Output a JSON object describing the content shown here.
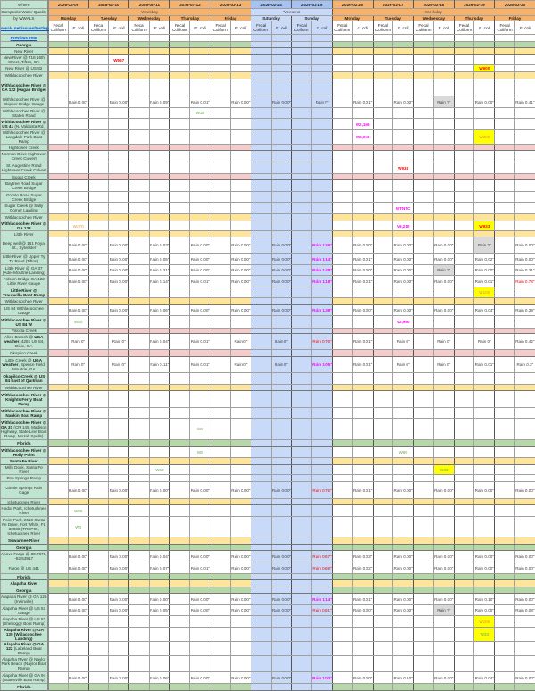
{
  "header": {
    "where": "Where",
    "subtitle": "Composite Water Quality",
    "by": "by WWALS",
    "link": "wwals.net/issues/testing/",
    "weekday_label": "Weekday",
    "weekend_label": "Weekend",
    "fields": [
      "Fecal Coliform",
      "E. coli"
    ],
    "days": [
      {
        "date": "2026-02-09",
        "name": "Monday",
        "weekend": false
      },
      {
        "date": "2026-02-10",
        "name": "Tuesday",
        "weekend": false
      },
      {
        "date": "2026-02-11",
        "name": "Wednesday",
        "weekend": false
      },
      {
        "date": "2026-02-12",
        "name": "Thursday",
        "weekend": false
      },
      {
        "date": "2026-02-13",
        "name": "Friday",
        "weekend": false
      },
      {
        "date": "2026-02-14",
        "name": "Saturday",
        "weekend": true
      },
      {
        "date": "2026-02-15",
        "name": "Sunday",
        "weekend": true
      },
      {
        "date": "2026-02-16",
        "name": "Monday",
        "weekend": false
      },
      {
        "date": "2026-02-17",
        "name": "Tuesday",
        "weekend": false
      },
      {
        "date": "2026-02-18",
        "name": "Wednesday",
        "weekend": false
      },
      {
        "date": "2026-02-19",
        "name": "Thursday",
        "weekend": false
      },
      {
        "date": "2026-02-20",
        "name": "Friday",
        "weekend": false
      }
    ]
  },
  "colors": {
    "header_orange": "#f6b26b",
    "weekend_blue": "#c9daf8",
    "state_green": "#b6d7a8",
    "river_yellow": "#ffe599",
    "creek_pink": "#f4cccc",
    "label_mint": "#bfe4d0",
    "highlight_yellow": "#ffff00",
    "rain_red": "#ff0000",
    "rain_magenta": "#ff00ff"
  },
  "rows": [
    {
      "type": "link",
      "label": "Previous Year"
    },
    {
      "type": "green",
      "bold": "Georgia"
    },
    {
      "type": "yellow",
      "label": "New River"
    },
    {
      "type": "site",
      "label": "New River @ 716 16th Street, Tifton, GA",
      "samples": [
        {
          "date": "2026-02-10",
          "field": "E. coli",
          "value": "W567",
          "tone": "red"
        }
      ]
    },
    {
      "type": "site",
      "label": "New River @ US 82",
      "samples": [
        {
          "date": "2026-02-19",
          "field": "E. coli",
          "value": "W600",
          "tone": "red",
          "highlight": true
        }
      ]
    },
    {
      "type": "yellow",
      "label": "Withlacoochee River"
    },
    {
      "type": "site",
      "bold": "Withlacoochee River @ GA 122 (Hagan Bridge)"
    },
    {
      "type": "site",
      "label": "Withlacoochee River @ Skipper Bridge Gauge",
      "rain": [
        "Rain 0.00\"",
        "Rain 0.00\"",
        "Rain 0.09\"",
        "Rain 0.01\"",
        "Rain 0.00\"",
        "Rain 0.00\"",
        "Rain ?\"",
        "Rain 0.01\"",
        "Rain 0.00\"",
        "Rain ?\"",
        "Rain 0.00\"",
        "Rain 0.41\""
      ]
    },
    {
      "type": "site",
      "label": "Withlacoochee River @ Staten Road",
      "samples": [
        {
          "date": "2026-02-12",
          "field": "E. coli",
          "value": "W33",
          "tone": "green"
        }
      ]
    },
    {
      "type": "site",
      "bold": "Withlacoochee River @ US 41",
      "label": " (N. Valdosta Rd.)",
      "samples": [
        {
          "date": "2026-02-16",
          "field": "E. coli",
          "value": "W2,166",
          "tone": "magenta"
        }
      ]
    },
    {
      "type": "site",
      "label": "Withlacoochee River @ Langdale Park Boat Ramp",
      "samples": [
        {
          "date": "2026-02-16",
          "field": "E. coli",
          "value": "W2,066",
          "tone": "magenta"
        },
        {
          "date": "2026-02-19",
          "field": "E. coli",
          "value": "W200",
          "tone": "orange",
          "highlight": true
        }
      ]
    },
    {
      "type": "pink",
      "label": "Hightower Creek"
    },
    {
      "type": "site",
      "label": "Norman Drive Hightower Creek Culvert"
    },
    {
      "type": "site",
      "label": "St. Augustine Road Hightower Creek Culvert",
      "samples": [
        {
          "date": "2026-02-17",
          "field": "E. coli",
          "value": "W933",
          "tone": "red"
        }
      ]
    },
    {
      "type": "pink",
      "label": "Sugar Creek"
    },
    {
      "type": "site",
      "label": "Baytree Road Sugar Creek Bridge"
    },
    {
      "type": "site",
      "label": "Gornto Road Sugar Creek Bridge"
    },
    {
      "type": "site",
      "label": "Sugar Creek @ Sally Corner Landing",
      "samples": [
        {
          "date": "2026-02-17",
          "field": "E. coli",
          "value": "WTNTC",
          "tone": "magenta"
        }
      ]
    },
    {
      "type": "yellow",
      "label": "Withlacoochee River"
    },
    {
      "type": "site",
      "bold": "Withlacoochee River @ GA 133",
      "samples": [
        {
          "date": "2026-02-09",
          "field": "E. coli",
          "value": "W370",
          "tone": "orange"
        },
        {
          "date": "2026-02-17",
          "field": "E. coli",
          "value": "V9,210",
          "tone": "magenta"
        },
        {
          "date": "2026-02-19",
          "field": "E. coli",
          "value": "W933",
          "tone": "red",
          "highlight": true
        }
      ]
    },
    {
      "type": "yellow",
      "label": "Little River"
    },
    {
      "type": "site",
      "label": "Deep well @ 161 Royal St., Sylvester",
      "rain": [
        "Rain 0.00\"",
        "Rain 0.00\"",
        "Rain 0.03\"",
        "Rain 0.00\"",
        "Rain 0.00\"",
        "Rain 0.00\"",
        "Rain 1.26\"",
        "Rain 0.00\"",
        "Rain 0.00\"",
        "Rain 0.00\"",
        "Rain ?\"",
        "Rain 0.00\""
      ]
    },
    {
      "type": "site",
      "label": "Little River @ Upper Ty Ty Road (Tifton)",
      "rain": [
        "Rain 0.00\"",
        "Rain 0.00\"",
        "Rain 0.05\"",
        "Rain 0.00\"",
        "Rain 0.00\"",
        "Rain 0.00\"",
        "Rain 1.14\"",
        "Rain 0.01\"",
        "Rain 0.00\"",
        "Rain 0.00\"",
        "Rain 0.02\"",
        "Rain 0.00\""
      ]
    },
    {
      "type": "site",
      "label": "Little River @ GA 37 (Adel-Moultrie Landing)",
      "rain": [
        "Rain 0.00\"",
        "Rain 0.00\"",
        "Rain 0.21\"",
        "Rain 0.00\"",
        "Rain 0.00\"",
        "Rain 0.00\"",
        "Rain 1.48\"",
        "Rain 0.00\"",
        "Rain 0.00\"",
        "Rain ?\"",
        "Rain 0.00\"",
        "Rain 0.31\""
      ]
    },
    {
      "type": "site",
      "label": "Folsom Bridge GA 122 Little River Gauge",
      "rain": [
        "Rain 0.00\"",
        "Rain 0.00\"",
        "Rain 0.14\"",
        "Rain 0.01\"",
        "Rain 0.00\"",
        "Rain 0.00\"",
        "Rain 1.18\"",
        "Rain 0.01\"",
        "Rain 0.00\"",
        "Rain 0.00\"",
        "Rain 0.01\"",
        "Rain 0.78\""
      ]
    },
    {
      "type": "site",
      "bold": "Little River @ Troupville Boat Ramp",
      "samples": [
        {
          "date": "2026-02-19",
          "field": "E. coli",
          "value": "W100",
          "tone": "orange",
          "highlight": true
        }
      ]
    },
    {
      "type": "yellow",
      "label": "Withlacoochee River"
    },
    {
      "type": "site",
      "label": "US 84 Withlacoochee Gauge",
      "rain": [
        "Rain 0.00\"",
        "Rain 0.00\"",
        "Rain 0.06\"",
        "Rain 0.00\"",
        "Rain 0.00\"",
        "Rain 0.00\"",
        "Rain 1.38\"",
        "Rain 0.00\"",
        "Rain 0.00\"",
        "Rain 0.00\"",
        "Rain 0.04\"",
        "Rain 0.39\""
      ]
    },
    {
      "type": "site",
      "bold": "Withlacoochee River @ US 84 W",
      "samples": [
        {
          "date": "2026-02-09",
          "field": "E. coli",
          "value": "W40",
          "tone": "green"
        },
        {
          "date": "2026-02-17",
          "field": "E. coli",
          "value": "V2,960",
          "tone": "magenta"
        }
      ]
    },
    {
      "type": "pink",
      "label": "Piscola Creek"
    },
    {
      "type": "site",
      "label": "Allen Branch @ ",
      "bold2": "UGA weather",
      "label2": ", 4281 US 84, Dixie, GA",
      "rain": [
        "Rain 0\"",
        "Rain 0\"",
        "Rain 0.04\"",
        "Rain 0.01\"",
        "Rain 0\"",
        "Rain 0\"",
        "Rain 0.76\"",
        "Rain 0.01\"",
        "Rain 0\"",
        "Rain 0\"",
        "Rain 0\"",
        "Rain 0.42\""
      ]
    },
    {
      "type": "pink",
      "label": "Okapilco Creek"
    },
    {
      "type": "site",
      "label": "Little Creek @ ",
      "bold2": "UGA Weather",
      "label2": ", Spence Field, Moultrie, GA",
      "rain": [
        "Rain 0\"",
        "Rain 0\"",
        "Rain 0.11\"",
        "Rain 0.01\"",
        "Rain 0\"",
        "Rain 0\"",
        "Rain 1.05\"",
        "Rain 0.01\"",
        "Rain 0\"",
        "Rain 0\"",
        "Rain 0.01\"",
        "Rain 0.3\""
      ]
    },
    {
      "type": "site",
      "bold": "Okapilco Creek @ US 84 East of Quitman"
    },
    {
      "type": "yellow",
      "label": "Withlacoochee River"
    },
    {
      "type": "site",
      "bold": "Withlacoochee River @ Knights Ferry Boat Ramp"
    },
    {
      "type": "site",
      "bold": "Withlacoochee River @ Nankin Boat Ramp"
    },
    {
      "type": "site",
      "bold": "Withlacoochee River @ GA 31",
      "label": " (CR 145, Madison Highway, State Line Boat Ramp, Mozell Spells)",
      "samples": [
        {
          "date": "2026-02-12",
          "field": "E. coli",
          "value": "W0",
          "tone": "green"
        }
      ]
    },
    {
      "type": "green",
      "bold": "Florida"
    },
    {
      "type": "site",
      "bold": "Withlacoochee River @ Holly Point",
      "samples": [
        {
          "date": "2026-02-12",
          "field": "E. coli",
          "value": "W0",
          "tone": "green"
        },
        {
          "date": "2026-02-17",
          "field": "E. coli",
          "value": "W66",
          "tone": "green"
        }
      ]
    },
    {
      "type": "yellow",
      "bold": "Santa Fe River"
    },
    {
      "type": "site",
      "label": "Mills Dock, Santa Fe River",
      "samples": [
        {
          "date": "2026-02-11",
          "field": "E. coli",
          "value": "W33",
          "tone": "green"
        },
        {
          "date": "2026-02-18",
          "field": "E. coli",
          "value": "W33",
          "tone": "green",
          "highlight": true
        }
      ]
    },
    {
      "type": "site",
      "label": "Poe Springs Ramp"
    },
    {
      "type": "site",
      "label": "Ginnie Springs Rain Gage",
      "rain": [
        "Rain 0.00\"",
        "Rain 0.00\"",
        "Rain 0.00\"",
        "Rain 0.00\"",
        "Rain 0.00\"",
        "Rain 0.00\"",
        "Rain 0.75\"",
        "Rain 0.01\"",
        "Rain 0.00\"",
        "Rain 0.00\"",
        "Rain 0.00\"",
        "Rain 0.00\""
      ]
    },
    {
      "type": "yellow",
      "label": "Ichetucknee River"
    },
    {
      "type": "site",
      "label": "Hodor Park, Ichetucknee River",
      "samples": [
        {
          "date": "2026-02-09",
          "field": "E. coli",
          "value": "W66",
          "tone": "green"
        }
      ]
    },
    {
      "type": "site",
      "label": "Point Park, 2610 Santa Fe Drive, Fort White, FL 32038 (TREPO), Ichetucknee River",
      "samples": [
        {
          "date": "2026-02-09",
          "field": "E. coli",
          "value": "W0",
          "tone": "green"
        }
      ]
    },
    {
      "type": "yellow",
      "bold": "Suwannee River"
    },
    {
      "type": "green",
      "bold": "Georgia"
    },
    {
      "type": "site",
      "label": "Above Fargo @ 30.7075, -82.53917",
      "rain": [
        "Rain 0.00\"",
        "Rain 0.00\"",
        "Rain 0.04\"",
        "Rain 0.00\"",
        "Rain 0.00\"",
        "Rain 0.00\"",
        "Rain 0.67\"",
        "Rain 0.03\"",
        "Rain 0.00\"",
        "Rain 0.00\"",
        "Rain 0.00\"",
        "Rain 0.00\""
      ]
    },
    {
      "type": "site",
      "label": "Fargo @ US 441",
      "rain": [
        "Rain 0.00\"",
        "Rain 0.00\"",
        "Rain 0.07\"",
        "Rain 0.01\"",
        "Rain 0.00\"",
        "Rain 0.00\"",
        "Rain 0.69\"",
        "Rain 0.02\"",
        "Rain 0.00\"",
        "Rain 0.00\"",
        "Rain 0.00\"",
        "Rain 0.00\""
      ]
    },
    {
      "type": "green",
      "bold": "Florida"
    },
    {
      "type": "yellow",
      "bold": "Alapaha River"
    },
    {
      "type": "green",
      "bold": "Georgia"
    },
    {
      "type": "site",
      "label": "Alapaha River @ GA 125 (Irwinville)",
      "rain": [
        "Rain 0.00\"",
        "Rain 0.00\"",
        "Rain 0.00\"",
        "Rain 0.00\"",
        "Rain 0.00\"",
        "Rain 0.00\"",
        "Rain 1.14\"",
        "Rain 0.01\"",
        "Rain 0.00\"",
        "Rain 0.00\"",
        "Rain 0.10\"",
        "Rain 0.00\""
      ]
    },
    {
      "type": "site",
      "label": "Alapaha River @ US 82 Gauge",
      "rain": [
        "Rain 0.00\"",
        "Rain 0.00\"",
        "Rain 0.05\"",
        "Rain 0.00\"",
        "Rain 0.00\"",
        "Rain 0.00\"",
        "Rain 0.81\"",
        "Rain 0.00\"",
        "Rain 0.00\"",
        "Rain ?\"",
        "Rain 0.00\"",
        "Rain 0.08\""
      ]
    },
    {
      "type": "site",
      "label": "Alapaha River @ US 82 (Sheboggy Boat Ramp)",
      "samples": [
        {
          "date": "2026-02-19",
          "field": "E. coli",
          "value": "W166",
          "tone": "orange",
          "highlight": true
        }
      ]
    },
    {
      "type": "site",
      "bold": "Alapaha River @ GA 135 (Willacoochee Landing)",
      "samples": [
        {
          "date": "2026-02-19",
          "field": "E. coli",
          "value": "W33",
          "tone": "green",
          "highlight": true
        }
      ]
    },
    {
      "type": "site",
      "bold": "Alapaha River @ GA 122",
      "label": " (Lakeland Boat Ramp)"
    },
    {
      "type": "site",
      "label": "Alapaha River @ Naylor Park Beach (Naylor Boat Ramp)"
    },
    {
      "type": "site",
      "label": "Alapaha River @ GA 94 (Statenville Boat Ramp)",
      "rain": [
        "Rain 0.00\"",
        "Rain 0.00\"",
        "Rain 0.06\"",
        "Rain 0.00\"",
        "Rain 0.00\"",
        "Rain 0.00\"",
        "Rain 1.02\"",
        "Rain 0.00\"",
        "Rain 0.10\"",
        "Rain 0.00\"",
        "Rain 0.04\"",
        "Rain 0.00\""
      ]
    },
    {
      "type": "green",
      "bold": "Florida"
    }
  ]
}
